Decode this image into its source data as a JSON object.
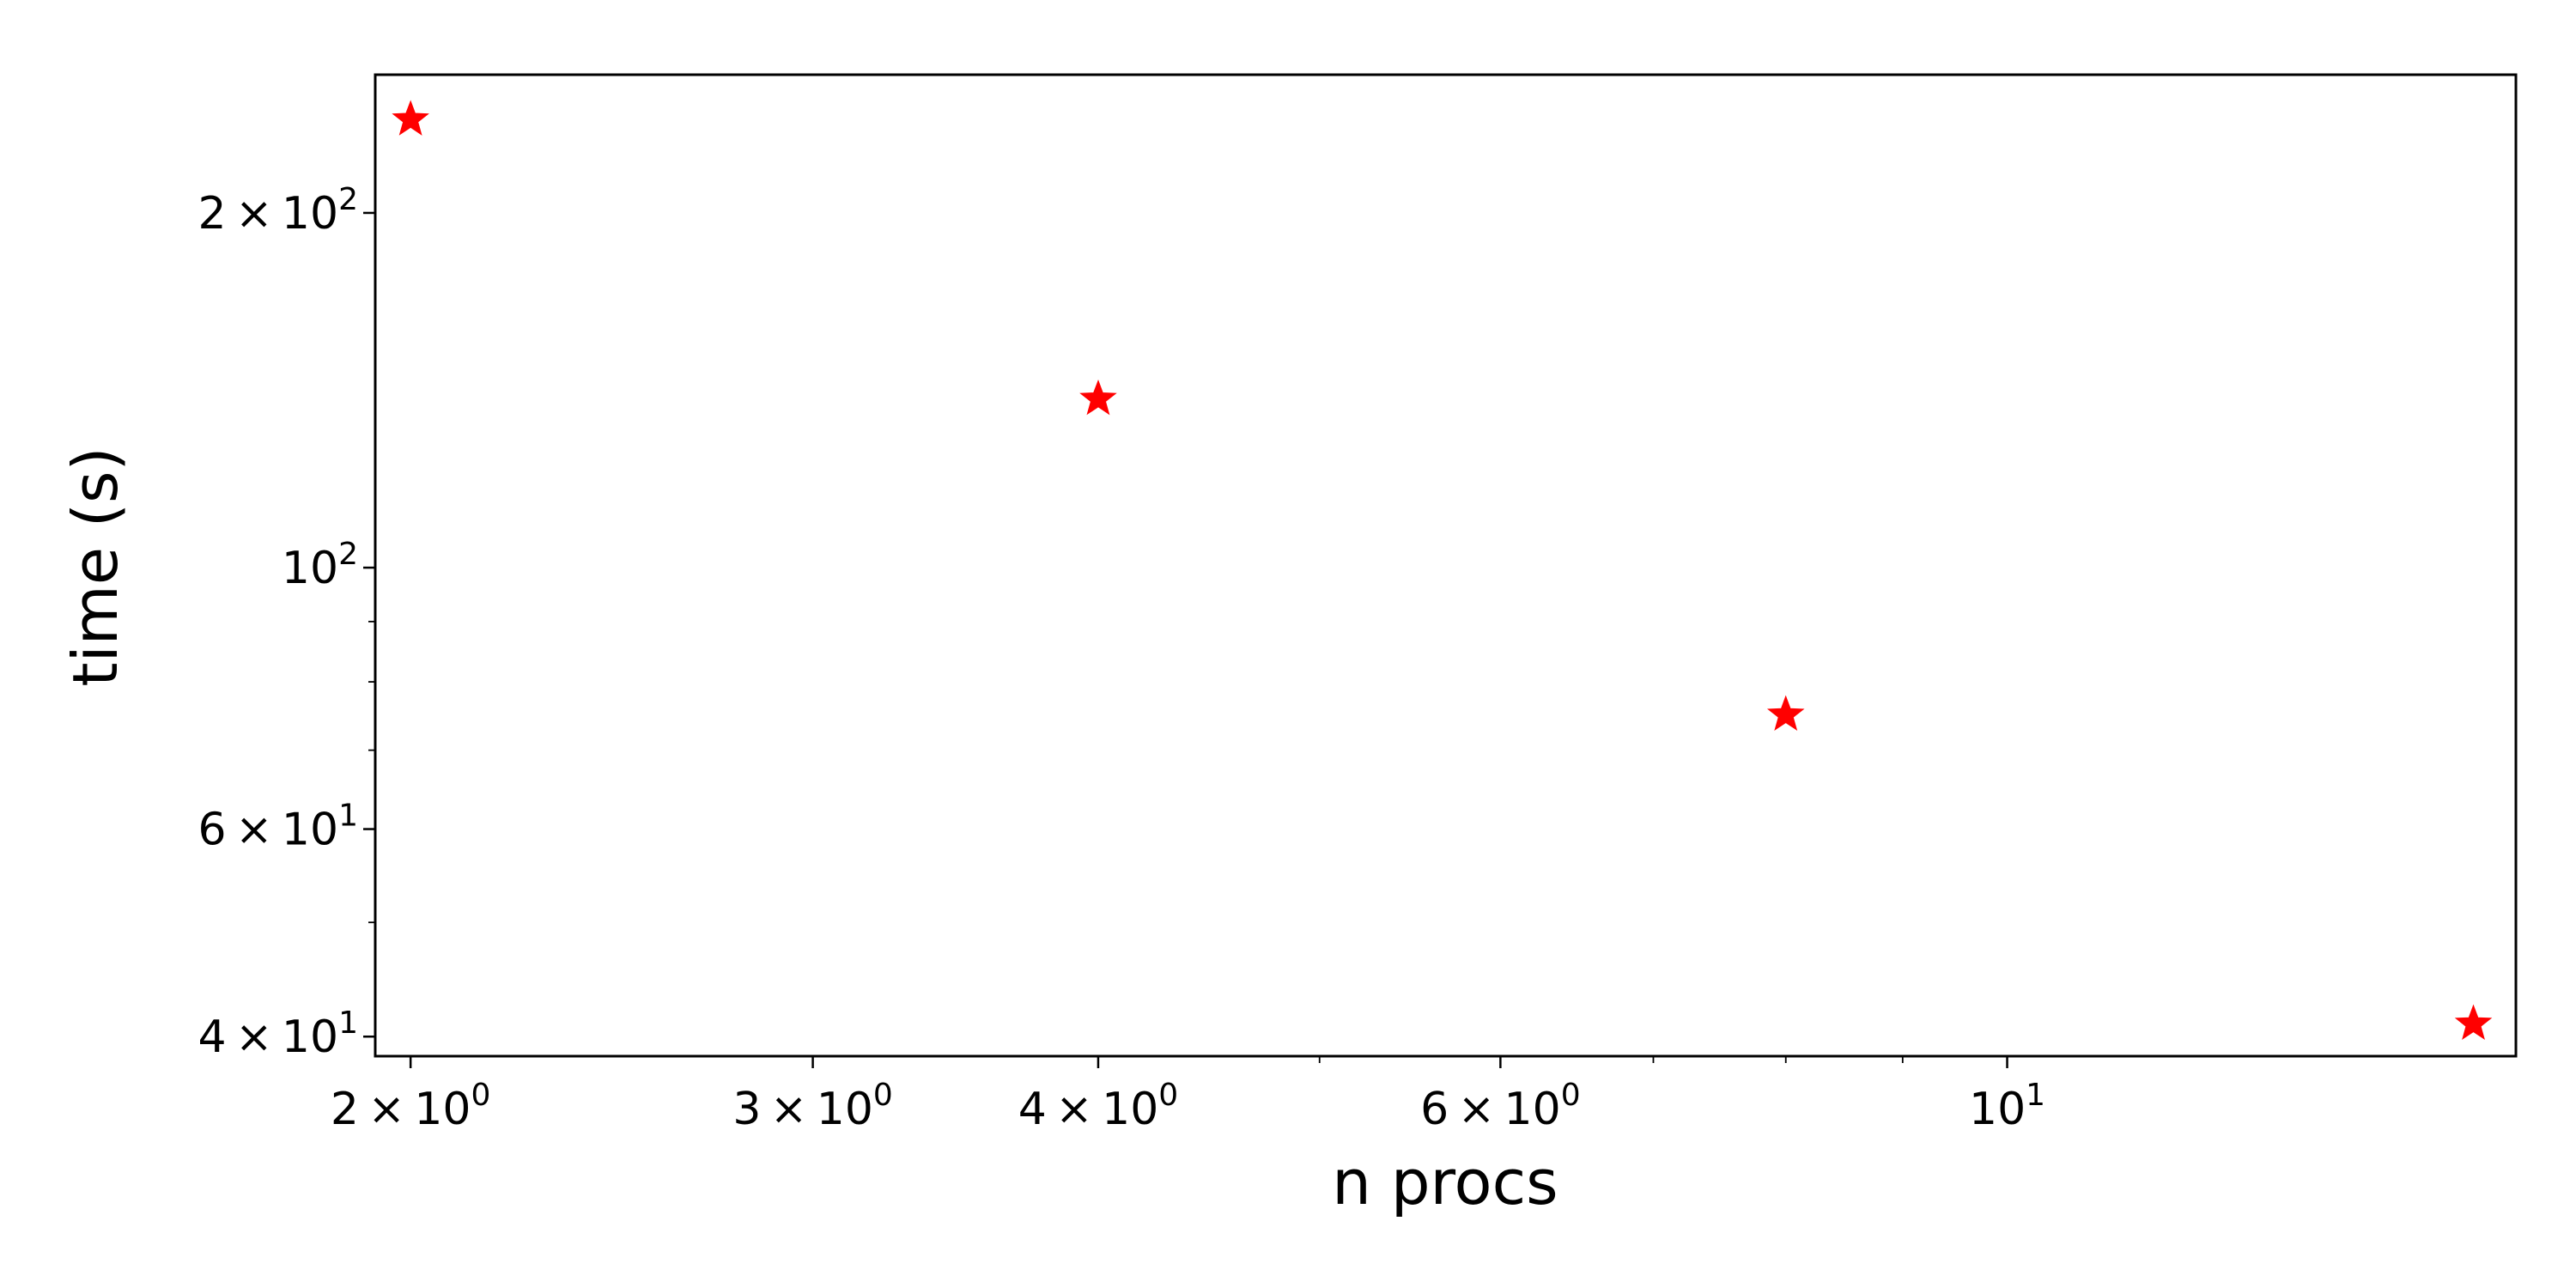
{
  "chart_data": {
    "type": "scatter",
    "xlabel": "n procs",
    "ylabel": "time (s)",
    "xscale": "log",
    "yscale": "log",
    "xlim": [
      1.93,
      16.7
    ],
    "ylim": [
      38.5,
      262
    ],
    "grid": false,
    "legend": "none",
    "marker": "star",
    "colors": {
      "marker": "#ff0000",
      "axes": "#000000",
      "background": "#ffffff"
    },
    "series": [
      {
        "x": [
          2,
          4,
          8,
          16
        ],
        "y": [
          240,
          139,
          75,
          41
        ]
      }
    ],
    "x_ticks": [
      {
        "value": 2,
        "mantissa": "2",
        "base": "10",
        "exp": "0"
      },
      {
        "value": 3,
        "mantissa": "3",
        "base": "10",
        "exp": "0"
      },
      {
        "value": 4,
        "mantissa": "4",
        "base": "10",
        "exp": "0"
      },
      {
        "value": 6,
        "mantissa": "6",
        "base": "10",
        "exp": "0"
      },
      {
        "value": 10,
        "mantissa": "",
        "base": "10",
        "exp": "1"
      }
    ],
    "x_minor_ticks": [
      5,
      7,
      8,
      9
    ],
    "y_ticks": [
      {
        "value": 200,
        "mantissa": "2",
        "base": "10",
        "exp": "2"
      },
      {
        "value": 100,
        "mantissa": "",
        "base": "10",
        "exp": "2"
      },
      {
        "value": 60,
        "mantissa": "6",
        "base": "10",
        "exp": "1"
      },
      {
        "value": 40,
        "mantissa": "4",
        "base": "10",
        "exp": "1"
      }
    ],
    "y_minor_ticks": [
      50,
      70,
      80,
      90
    ],
    "times_symbol": "×"
  }
}
